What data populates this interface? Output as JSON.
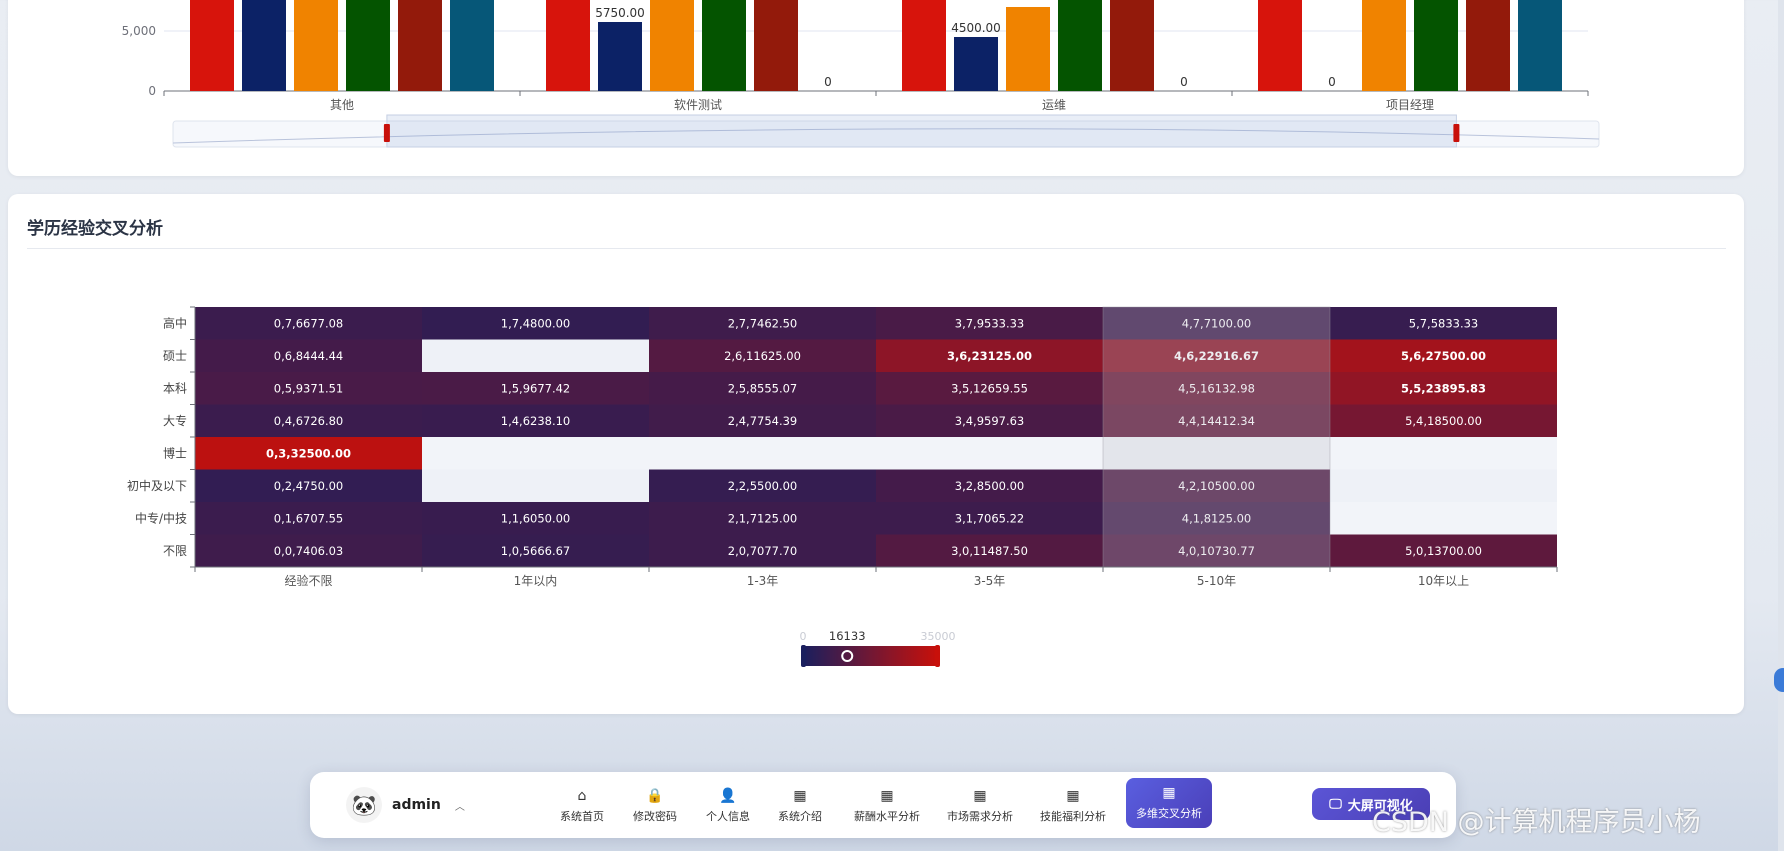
{
  "bar_chart": {
    "type": "bar",
    "categories": [
      "其他",
      "软件测试",
      "运维",
      "项目经理"
    ],
    "y_ticks": [
      "0",
      "5,000"
    ],
    "ylim": [
      0,
      10000
    ],
    "series_colors": [
      "#d7140c",
      "#0c2266",
      "#f08300",
      "#045400",
      "#931a0b",
      "#065778"
    ],
    "values": [
      [
        9800,
        9800,
        9800,
        9800,
        9800,
        9800
      ],
      [
        9800,
        5750,
        9800,
        9800,
        9800,
        0
      ],
      [
        9800,
        4500,
        7000,
        9800,
        9800,
        0
      ],
      [
        9800,
        0,
        9800,
        9800,
        9800,
        9800
      ]
    ],
    "value_labels": [
      [
        "",
        "",
        "",
        "",
        "",
        ""
      ],
      [
        "",
        "5750.00",
        "",
        "",
        "",
        "0"
      ],
      [
        "",
        "4500.00",
        "",
        "",
        "",
        "0"
      ],
      [
        "",
        "0",
        "",
        "",
        "",
        ""
      ]
    ],
    "zoom_range": [
      0.15,
      0.9
    ]
  },
  "heatmap": {
    "title": "学历经验交叉分析",
    "chart_data": {
      "type": "heatmap",
      "x_categories": [
        "经验不限",
        "1年以内",
        "1-3年",
        "3-5年",
        "5-10年",
        "10年以上"
      ],
      "y_categories": [
        "高中",
        "硕士",
        "本科",
        "大专",
        "博士",
        "初中及以下",
        "中专/中技",
        "不限"
      ],
      "cells": [
        [
          "0,7,6677.08",
          "1,7,4800.00",
          "2,7,7462.50",
          "3,7,9533.33",
          "4,7,7100.00",
          "5,7,5833.33"
        ],
        [
          "0,6,8444.44",
          "",
          "2,6,11625.00",
          "3,6,23125.00",
          "4,6,22916.67",
          "5,6,27500.00"
        ],
        [
          "0,5,9371.51",
          "1,5,9677.42",
          "2,5,8555.07",
          "3,5,12659.55",
          "4,5,16132.98",
          "5,5,23895.83"
        ],
        [
          "0,4,6726.80",
          "1,4,6238.10",
          "2,4,7754.39",
          "3,4,9597.63",
          "4,4,14412.34",
          "5,4,18500.00"
        ],
        [
          "0,3,32500.00",
          "",
          "",
          "",
          "",
          ""
        ],
        [
          "0,2,4750.00",
          "",
          "2,2,5500.00",
          "3,2,8500.00",
          "4,2,10500.00",
          ""
        ],
        [
          "0,1,6707.55",
          "1,1,6050.00",
          "2,1,7125.00",
          "3,1,7065.22",
          "4,1,8125.00",
          ""
        ],
        [
          "0,0,7406.03",
          "1,0,5666.67",
          "2,0,7077.70",
          "3,0,11487.50",
          "4,0,10730.77",
          "5,0,13700.00"
        ]
      ],
      "values": [
        [
          6677.08,
          4800.0,
          7462.5,
          9533.33,
          7100.0,
          5833.33
        ],
        [
          8444.44,
          null,
          11625.0,
          23125.0,
          22916.67,
          27500.0
        ],
        [
          9371.51,
          9677.42,
          8555.07,
          12659.55,
          16132.98,
          23895.83
        ],
        [
          6726.8,
          6238.1,
          7754.39,
          9597.63,
          14412.34,
          18500.0
        ],
        [
          32500.0,
          null,
          null,
          null,
          null,
          null
        ],
        [
          4750.0,
          null,
          5500.0,
          8500.0,
          10500.0,
          null
        ],
        [
          6707.55,
          6050.0,
          7125.0,
          7065.22,
          8125.0,
          null
        ],
        [
          7406.03,
          5666.67,
          7077.7,
          11487.5,
          10730.77,
          13700.0
        ]
      ],
      "visual_map": {
        "min": 0,
        "max": 35000,
        "min_label": "0",
        "max_label": "35000",
        "current_label": "16133",
        "current": 16133
      },
      "color_low": "#1a1f5e",
      "color_high": "#c8100a",
      "highlight_column": "5-10年"
    }
  },
  "dock": {
    "user_name": "admin",
    "items": [
      {
        "label": "系统首页",
        "icon": "⌂"
      },
      {
        "label": "修改密码",
        "icon": "🔒"
      },
      {
        "label": "个人信息",
        "icon": "👤"
      },
      {
        "label": "系统介绍",
        "icon": "▦"
      },
      {
        "label": "薪酬水平分析",
        "icon": "▦"
      },
      {
        "label": "市场需求分析",
        "icon": "▦"
      },
      {
        "label": "技能福利分析",
        "icon": "▦"
      },
      {
        "label": "多维交叉分析",
        "icon": "▦"
      }
    ],
    "bigscreen_label": "大屏可视化",
    "bigscreen_icon": "🖵"
  },
  "watermark": "CSDN @计算机程序员小杨"
}
